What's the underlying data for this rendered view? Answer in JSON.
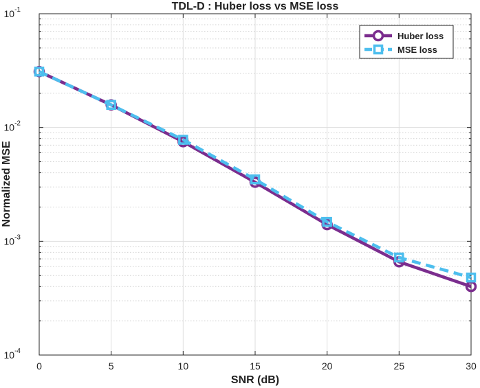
{
  "chart_data": {
    "type": "line",
    "title": "TDL-D : Huber loss vs MSE loss",
    "xlabel": "SNR (dB)",
    "ylabel": "Normalized MSE",
    "x": [
      0,
      5,
      10,
      15,
      20,
      25,
      30
    ],
    "xlim": [
      0,
      30
    ],
    "ylim": [
      0.0001,
      0.1
    ],
    "yscale": "log",
    "grid": true,
    "legend_position": "top-right",
    "x_tick_labels": [
      "0",
      "5",
      "10",
      "15",
      "20",
      "25",
      "30"
    ],
    "y_tick_labels": [
      {
        "base": "10",
        "exp": "-4"
      },
      {
        "base": "10",
        "exp": "-3"
      },
      {
        "base": "10",
        "exp": "-2"
      },
      {
        "base": "10",
        "exp": "-1"
      }
    ],
    "series": [
      {
        "name": "Huber loss",
        "color": "#7B2D8E",
        "marker": "circle",
        "line_style": "solid",
        "values": [
          0.031,
          0.0158,
          0.0075,
          0.0033,
          0.0014,
          0.00066,
          0.0004
        ]
      },
      {
        "name": "MSE loss",
        "color": "#4DBEEE",
        "marker": "square",
        "line_style": "dashed",
        "values": [
          0.031,
          0.0158,
          0.0078,
          0.0035,
          0.00148,
          0.00072,
          0.00048
        ]
      }
    ]
  }
}
